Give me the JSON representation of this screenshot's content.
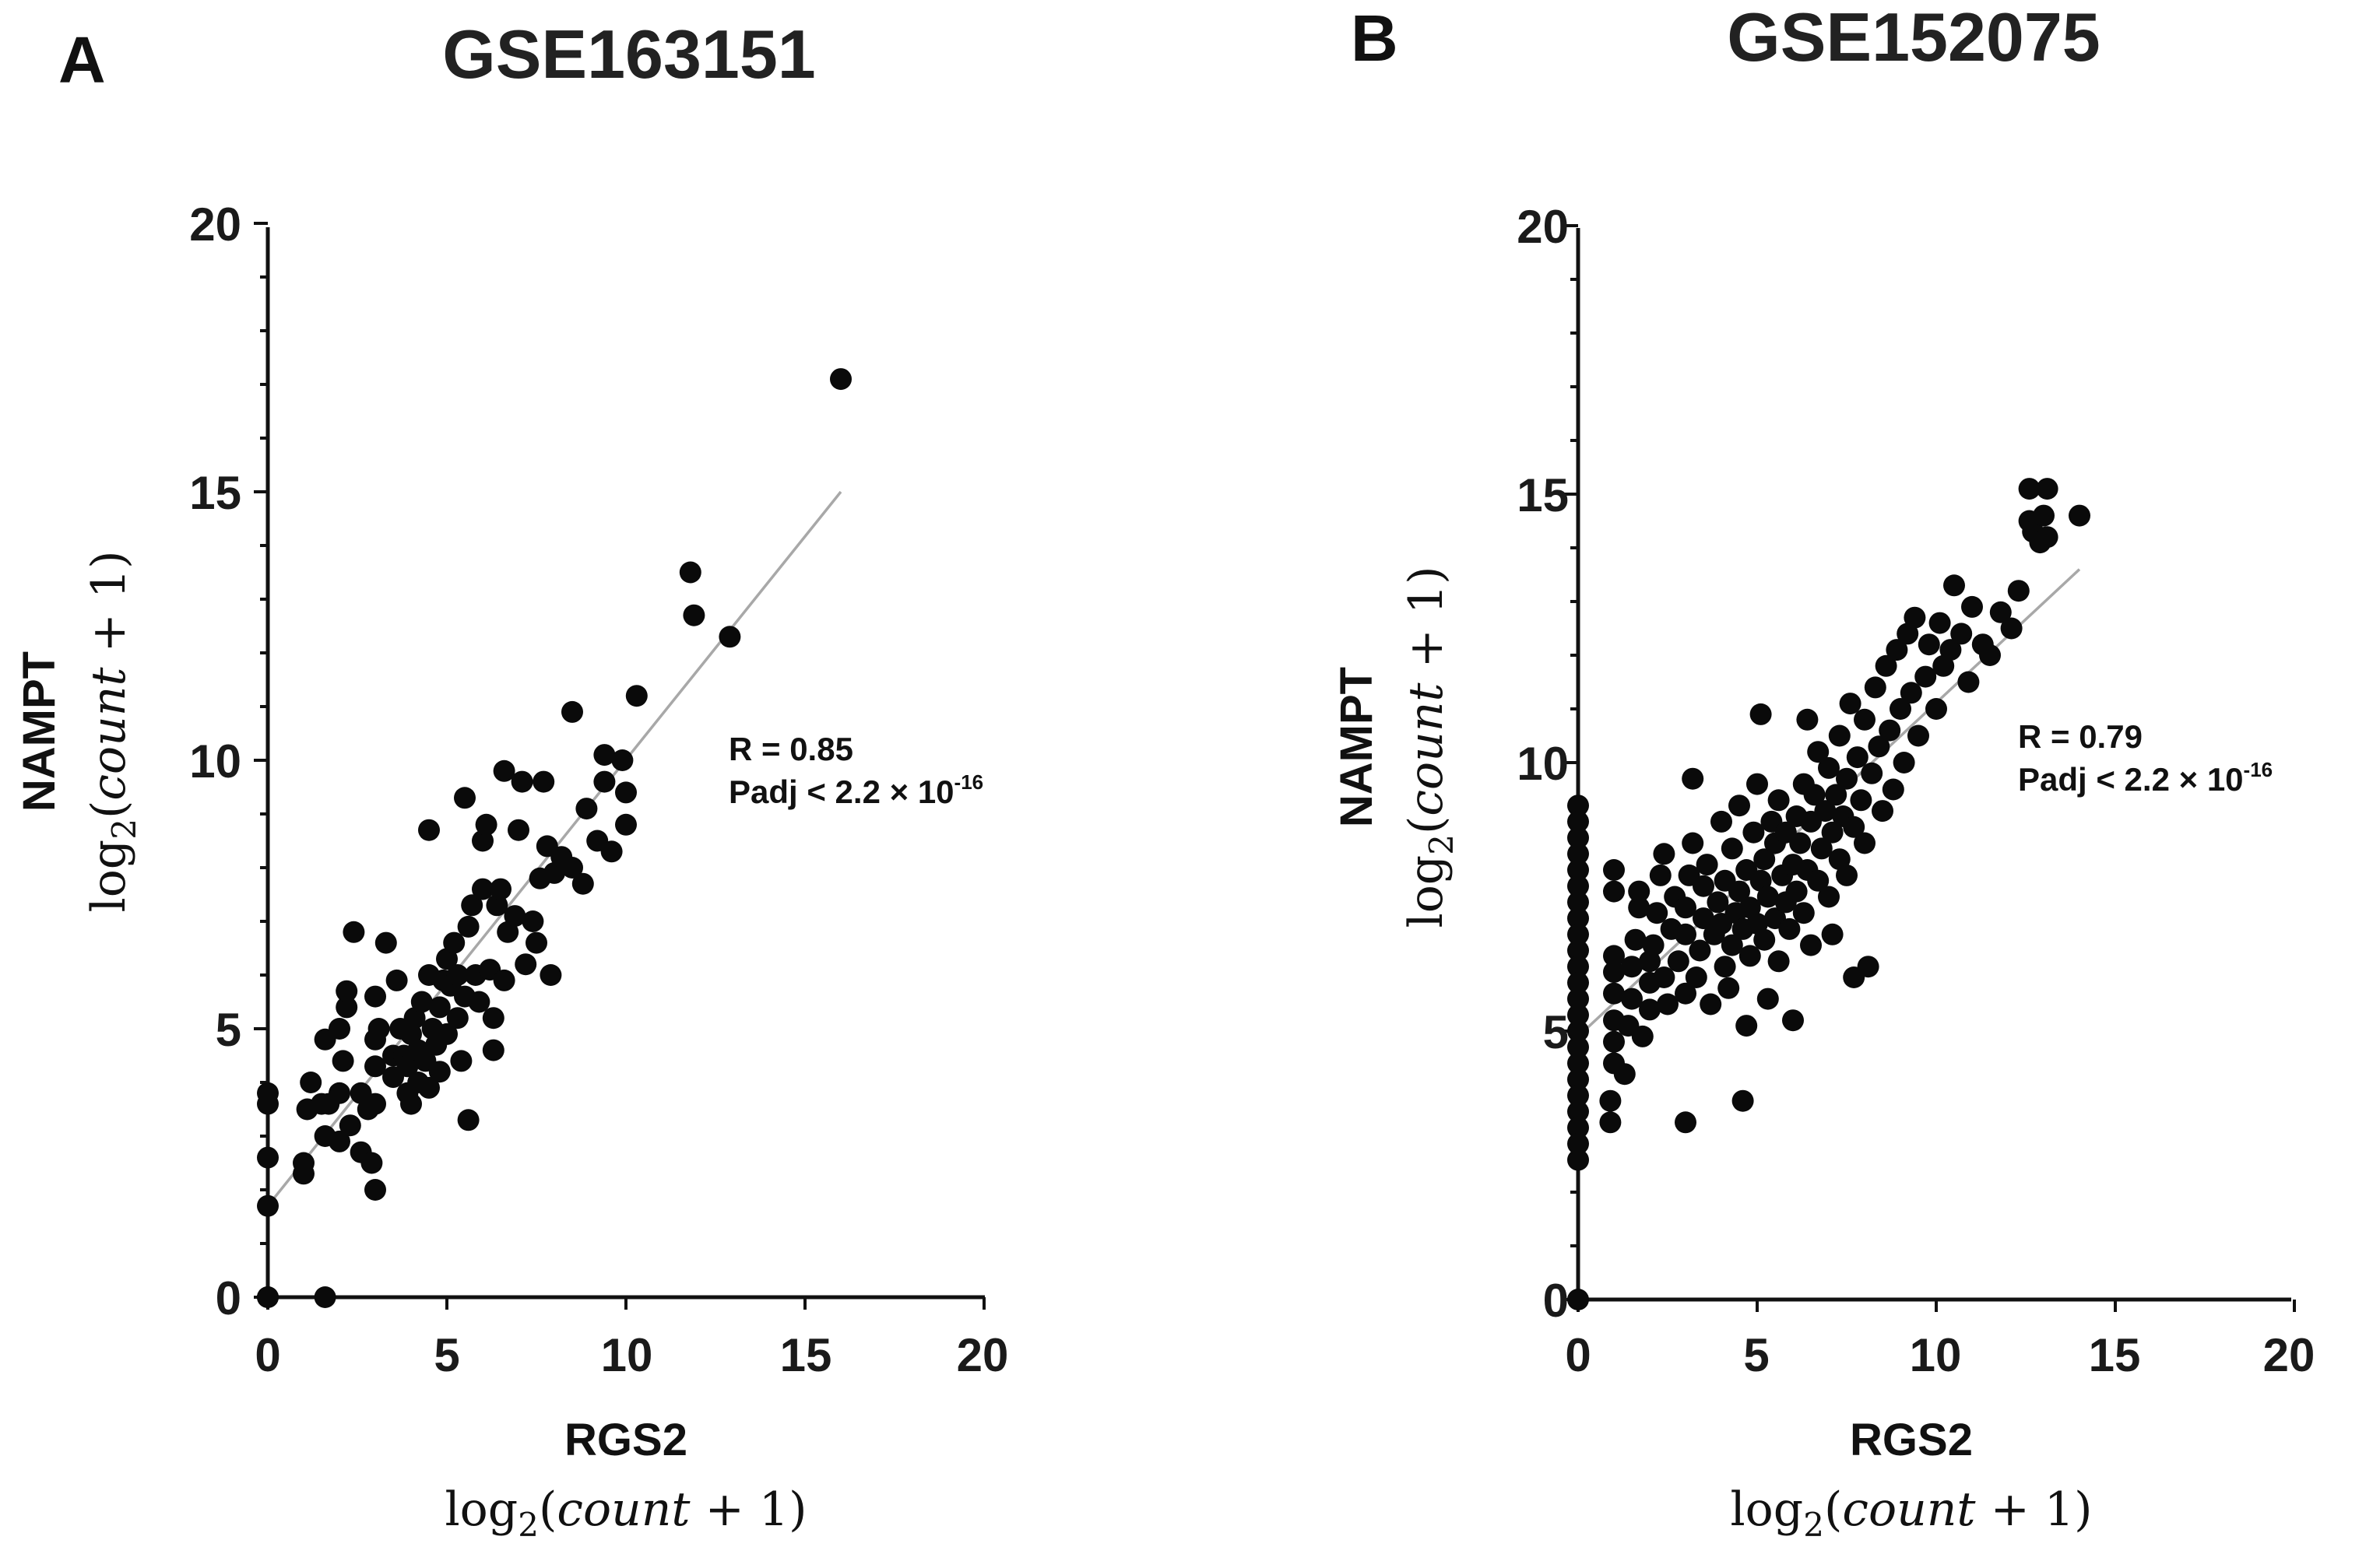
{
  "chart_data": [
    {
      "type": "scatter",
      "panel": "A",
      "title": "GSE163151",
      "xlabel": "RGS2",
      "ylabel": "NAMPT",
      "xunit": {
        "prefix": "log",
        "sub": "2",
        "open": "(",
        "var": "count",
        "rest": " + 1)"
      },
      "yunit": {
        "prefix": "log",
        "sub": "2",
        "open": "(",
        "var": "count",
        "rest": " + 1)"
      },
      "xlim": [
        0,
        20
      ],
      "ylim": [
        0,
        20
      ],
      "xticks": [
        "0",
        "5",
        "10",
        "15",
        "20"
      ],
      "yticks": [
        "0",
        "5",
        "10",
        "15",
        "20"
      ],
      "stats": {
        "r": "R = 0.85",
        "padj": "Padj < 2.2 × 10",
        "padj_exp": "-16"
      },
      "fit": {
        "x0": 0,
        "y0": 1.7,
        "x1": 16,
        "y1": 15.0
      },
      "points": [
        [
          0.0,
          3.8
        ],
        [
          0.0,
          3.6
        ],
        [
          0.0,
          2.6
        ],
        [
          0.0,
          1.7
        ],
        [
          0.0,
          0.0
        ],
        [
          0.0,
          0.0
        ],
        [
          1.6,
          0.0
        ],
        [
          1.0,
          2.5
        ],
        [
          1.0,
          2.3
        ],
        [
          1.1,
          3.5
        ],
        [
          1.2,
          4.0
        ],
        [
          1.5,
          3.6
        ],
        [
          1.6,
          3.0
        ],
        [
          1.7,
          3.6
        ],
        [
          1.6,
          4.8
        ],
        [
          2.0,
          5.0
        ],
        [
          2.0,
          3.8
        ],
        [
          2.0,
          2.9
        ],
        [
          2.1,
          4.4
        ],
        [
          2.2,
          5.4
        ],
        [
          2.2,
          5.7
        ],
        [
          2.3,
          3.2
        ],
        [
          2.4,
          6.8
        ],
        [
          2.6,
          3.8
        ],
        [
          2.6,
          2.7
        ],
        [
          2.8,
          3.5
        ],
        [
          3.0,
          2.0
        ],
        [
          2.9,
          2.5
        ],
        [
          3.0,
          3.6
        ],
        [
          3.0,
          4.3
        ],
        [
          3.0,
          4.8
        ],
        [
          3.1,
          5.0
        ],
        [
          3.0,
          5.6
        ],
        [
          3.3,
          6.6
        ],
        [
          3.5,
          4.5
        ],
        [
          3.5,
          4.1
        ],
        [
          3.6,
          5.9
        ],
        [
          3.7,
          5.0
        ],
        [
          3.8,
          4.5
        ],
        [
          3.9,
          4.3
        ],
        [
          3.9,
          3.8
        ],
        [
          4.0,
          3.6
        ],
        [
          4.0,
          4.9
        ],
        [
          4.1,
          5.2
        ],
        [
          4.2,
          4.0
        ],
        [
          4.2,
          4.6
        ],
        [
          4.3,
          5.5
        ],
        [
          4.4,
          4.4
        ],
        [
          4.5,
          3.9
        ],
        [
          4.5,
          6.0
        ],
        [
          4.6,
          5.0
        ],
        [
          4.7,
          4.7
        ],
        [
          4.8,
          4.2
        ],
        [
          4.8,
          5.4
        ],
        [
          4.9,
          5.9
        ],
        [
          5.0,
          6.3
        ],
        [
          5.0,
          4.9
        ],
        [
          5.1,
          5.8
        ],
        [
          5.2,
          6.6
        ],
        [
          5.3,
          6.0
        ],
        [
          5.3,
          5.2
        ],
        [
          5.4,
          4.4
        ],
        [
          5.5,
          5.6
        ],
        [
          5.6,
          3.3
        ],
        [
          5.6,
          6.9
        ],
        [
          5.7,
          7.3
        ],
        [
          5.8,
          6.0
        ],
        [
          5.9,
          5.5
        ],
        [
          6.0,
          7.6
        ],
        [
          6.0,
          8.5
        ],
        [
          6.1,
          8.8
        ],
        [
          6.2,
          6.1
        ],
        [
          6.3,
          5.2
        ],
        [
          6.3,
          4.6
        ],
        [
          6.4,
          7.3
        ],
        [
          6.5,
          7.6
        ],
        [
          6.6,
          9.8
        ],
        [
          6.6,
          5.9
        ],
        [
          6.7,
          6.8
        ],
        [
          6.9,
          7.1
        ],
        [
          7.0,
          8.7
        ],
        [
          7.1,
          9.6
        ],
        [
          7.2,
          6.2
        ],
        [
          7.4,
          7.0
        ],
        [
          7.5,
          6.6
        ],
        [
          7.6,
          7.8
        ],
        [
          7.7,
          9.6
        ],
        [
          7.8,
          8.4
        ],
        [
          7.9,
          6.0
        ],
        [
          8.0,
          7.9
        ],
        [
          8.2,
          8.2
        ],
        [
          8.5,
          10.9
        ],
        [
          8.5,
          8.0
        ],
        [
          8.8,
          7.7
        ],
        [
          8.9,
          9.1
        ],
        [
          9.2,
          8.5
        ],
        [
          9.4,
          9.6
        ],
        [
          9.4,
          10.1
        ],
        [
          9.6,
          8.3
        ],
        [
          9.9,
          10.0
        ],
        [
          10.0,
          9.4
        ],
        [
          10.0,
          8.8
        ],
        [
          4.5,
          8.7
        ],
        [
          5.5,
          9.3
        ],
        [
          10.3,
          11.2
        ],
        [
          11.8,
          13.5
        ],
        [
          11.9,
          12.7
        ],
        [
          12.9,
          12.3
        ],
        [
          16.0,
          17.1
        ]
      ]
    },
    {
      "type": "scatter",
      "panel": "B",
      "title": "GSE152075",
      "xlabel": "RGS2",
      "ylabel": "NAMPT",
      "xunit": {
        "prefix": "log",
        "sub": "2",
        "open": "(",
        "var": "count",
        "rest": " + 1)"
      },
      "yunit": {
        "prefix": "log",
        "sub": "2",
        "open": "(",
        "var": "count",
        "rest": " + 1)"
      },
      "xlim": [
        0,
        20
      ],
      "ylim": [
        0,
        20
      ],
      "xticks": [
        "0",
        "5",
        "10",
        "15",
        "20"
      ],
      "yticks": [
        "0",
        "5",
        "10",
        "15",
        "20"
      ],
      "stats": {
        "r": "R = 0.79",
        "padj": "Padj < 2.2 × 10",
        "padj_exp": "-16"
      },
      "fit": {
        "x0": 0,
        "y0": 4.9,
        "x1": 14,
        "y1": 13.6
      },
      "points": [
        [
          0.0,
          9.2
        ],
        [
          0.0,
          8.9
        ],
        [
          0.0,
          8.6
        ],
        [
          0.0,
          8.3
        ],
        [
          0.0,
          8.0
        ],
        [
          0.0,
          7.7
        ],
        [
          0.0,
          7.4
        ],
        [
          0.0,
          7.1
        ],
        [
          0.0,
          6.8
        ],
        [
          0.0,
          6.5
        ],
        [
          0.0,
          6.2
        ],
        [
          0.0,
          5.9
        ],
        [
          0.0,
          5.6
        ],
        [
          0.0,
          5.3
        ],
        [
          0.0,
          5.0
        ],
        [
          0.0,
          4.7
        ],
        [
          0.0,
          4.4
        ],
        [
          0.0,
          4.1
        ],
        [
          0.0,
          3.8
        ],
        [
          0.0,
          3.5
        ],
        [
          0.0,
          3.2
        ],
        [
          0.0,
          2.9
        ],
        [
          0.0,
          2.6
        ],
        [
          0.0,
          0.0
        ],
        [
          0.9,
          3.3
        ],
        [
          0.9,
          3.7
        ],
        [
          1.0,
          4.4
        ],
        [
          1.0,
          4.8
        ],
        [
          1.0,
          5.2
        ],
        [
          1.0,
          5.7
        ],
        [
          1.0,
          6.1
        ],
        [
          1.0,
          6.4
        ],
        [
          1.0,
          7.6
        ],
        [
          1.0,
          8.0
        ],
        [
          1.3,
          4.2
        ],
        [
          1.4,
          5.1
        ],
        [
          1.5,
          5.6
        ],
        [
          1.5,
          6.2
        ],
        [
          1.6,
          6.7
        ],
        [
          1.7,
          7.3
        ],
        [
          1.7,
          7.6
        ],
        [
          1.8,
          4.9
        ],
        [
          2.0,
          5.4
        ],
        [
          2.0,
          5.9
        ],
        [
          2.0,
          6.3
        ],
        [
          2.1,
          6.6
        ],
        [
          2.2,
          7.2
        ],
        [
          2.3,
          7.9
        ],
        [
          2.4,
          8.3
        ],
        [
          2.4,
          6.0
        ],
        [
          2.5,
          5.5
        ],
        [
          2.6,
          6.9
        ],
        [
          2.7,
          7.5
        ],
        [
          2.8,
          6.3
        ],
        [
          3.0,
          3.3
        ],
        [
          3.0,
          5.7
        ],
        [
          3.0,
          6.8
        ],
        [
          3.0,
          7.3
        ],
        [
          3.1,
          7.9
        ],
        [
          3.2,
          8.5
        ],
        [
          3.2,
          9.7
        ],
        [
          3.3,
          6.0
        ],
        [
          3.4,
          6.5
        ],
        [
          3.5,
          7.1
        ],
        [
          3.5,
          7.7
        ],
        [
          3.6,
          8.1
        ],
        [
          3.7,
          5.5
        ],
        [
          3.8,
          6.8
        ],
        [
          3.9,
          7.4
        ],
        [
          4.0,
          8.9
        ],
        [
          4.0,
          7.0
        ],
        [
          4.1,
          6.2
        ],
        [
          4.1,
          7.8
        ],
        [
          4.2,
          5.8
        ],
        [
          4.3,
          8.4
        ],
        [
          4.3,
          6.6
        ],
        [
          4.4,
          7.2
        ],
        [
          4.5,
          7.6
        ],
        [
          4.5,
          9.2
        ],
        [
          4.6,
          6.9
        ],
        [
          4.6,
          3.7
        ],
        [
          4.7,
          5.1
        ],
        [
          4.7,
          8.0
        ],
        [
          4.8,
          7.3
        ],
        [
          4.8,
          6.4
        ],
        [
          4.9,
          8.7
        ],
        [
          5.0,
          7.0
        ],
        [
          5.0,
          9.6
        ],
        [
          5.1,
          10.9
        ],
        [
          5.1,
          7.8
        ],
        [
          5.2,
          6.7
        ],
        [
          5.2,
          8.2
        ],
        [
          5.3,
          7.5
        ],
        [
          5.3,
          5.6
        ],
        [
          5.4,
          8.9
        ],
        [
          5.5,
          7.1
        ],
        [
          5.5,
          8.5
        ],
        [
          5.6,
          6.3
        ],
        [
          5.6,
          9.3
        ],
        [
          5.7,
          7.9
        ],
        [
          5.8,
          7.4
        ],
        [
          5.8,
          8.7
        ],
        [
          5.9,
          6.9
        ],
        [
          6.0,
          5.2
        ],
        [
          6.0,
          8.1
        ],
        [
          6.1,
          9.0
        ],
        [
          6.1,
          7.6
        ],
        [
          6.2,
          8.5
        ],
        [
          6.3,
          9.6
        ],
        [
          6.3,
          7.2
        ],
        [
          6.4,
          10.8
        ],
        [
          6.4,
          8.0
        ],
        [
          6.5,
          6.6
        ],
        [
          6.5,
          8.9
        ],
        [
          6.6,
          9.4
        ],
        [
          6.7,
          7.8
        ],
        [
          6.7,
          10.2
        ],
        [
          6.8,
          8.4
        ],
        [
          6.9,
          9.1
        ],
        [
          7.0,
          7.5
        ],
        [
          7.0,
          9.9
        ],
        [
          7.1,
          8.7
        ],
        [
          7.1,
          6.8
        ],
        [
          7.2,
          9.4
        ],
        [
          7.3,
          8.2
        ],
        [
          7.3,
          10.5
        ],
        [
          7.4,
          9.0
        ],
        [
          7.5,
          7.9
        ],
        [
          7.5,
          9.7
        ],
        [
          7.6,
          11.1
        ],
        [
          7.7,
          8.8
        ],
        [
          7.7,
          6.0
        ],
        [
          7.8,
          10.1
        ],
        [
          7.9,
          9.3
        ],
        [
          8.0,
          8.5
        ],
        [
          8.0,
          10.8
        ],
        [
          8.1,
          6.2
        ],
        [
          8.2,
          9.8
        ],
        [
          8.3,
          11.4
        ],
        [
          8.4,
          10.3
        ],
        [
          8.5,
          9.1
        ],
        [
          8.6,
          11.8
        ],
        [
          8.7,
          10.6
        ],
        [
          8.8,
          9.5
        ],
        [
          8.9,
          12.1
        ],
        [
          9.0,
          11.0
        ],
        [
          9.1,
          10.0
        ],
        [
          9.2,
          12.4
        ],
        [
          9.3,
          11.3
        ],
        [
          9.4,
          12.7
        ],
        [
          9.5,
          10.5
        ],
        [
          9.7,
          11.6
        ],
        [
          9.8,
          12.2
        ],
        [
          10.0,
          11.0
        ],
        [
          10.1,
          12.6
        ],
        [
          10.2,
          11.8
        ],
        [
          10.4,
          12.1
        ],
        [
          10.5,
          13.3
        ],
        [
          10.7,
          12.4
        ],
        [
          10.9,
          11.5
        ],
        [
          11.0,
          12.9
        ],
        [
          11.3,
          12.2
        ],
        [
          11.5,
          12.0
        ],
        [
          11.8,
          12.8
        ],
        [
          12.1,
          12.5
        ],
        [
          12.3,
          13.2
        ],
        [
          12.6,
          15.1
        ],
        [
          12.6,
          14.5
        ],
        [
          12.7,
          14.3
        ],
        [
          12.9,
          14.1
        ],
        [
          13.0,
          14.6
        ],
        [
          13.1,
          15.1
        ],
        [
          13.1,
          14.2
        ],
        [
          14.0,
          14.6
        ]
      ]
    }
  ]
}
